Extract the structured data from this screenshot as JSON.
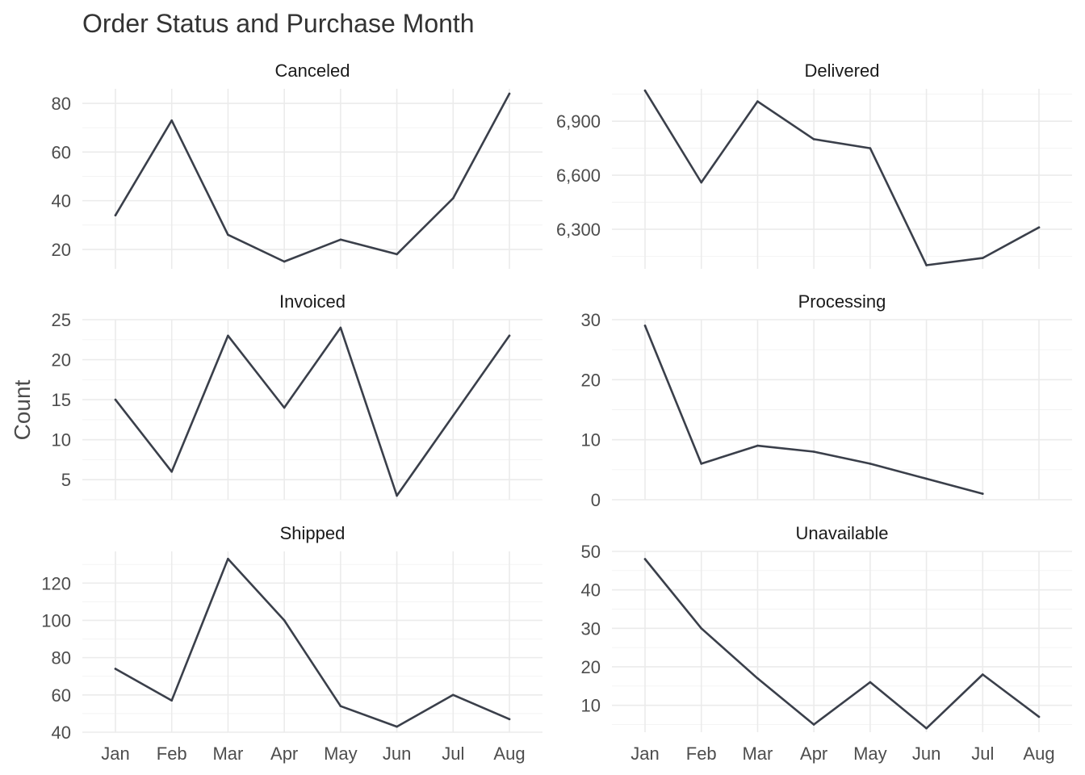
{
  "chart_data": {
    "type": "line",
    "title": "Order Status and Purchase Month",
    "xlabel": "",
    "ylabel": "Count",
    "categories": [
      "Jan",
      "Feb",
      "Mar",
      "Apr",
      "May",
      "Jun",
      "Jul",
      "Aug"
    ],
    "grid": true,
    "layout": "facets 2 columns x 3 rows, free y scales",
    "line_color": "#3a3f4a",
    "panels": [
      {
        "name": "Canceled",
        "values": [
          34,
          73,
          26,
          15,
          24,
          18,
          41,
          84
        ],
        "ylim": [
          12,
          86
        ],
        "y_ticks": [
          20,
          40,
          60,
          80
        ],
        "y_tick_labels": [
          "20",
          "40",
          "60",
          "80"
        ]
      },
      {
        "name": "Delivered",
        "values": [
          7070,
          6560,
          7010,
          6800,
          6750,
          6100,
          6140,
          6310
        ],
        "ylim": [
          6080,
          7080
        ],
        "y_ticks": [
          6300,
          6600,
          6900
        ],
        "y_tick_labels": [
          "6,300",
          "6,600",
          "6,900"
        ]
      },
      {
        "name": "Invoiced",
        "values": [
          15,
          6,
          23,
          14,
          24,
          3,
          13,
          23
        ],
        "ylim": [
          2.5,
          25
        ],
        "y_ticks": [
          5,
          10,
          15,
          20,
          25
        ],
        "y_tick_labels": [
          "5",
          "10",
          "15",
          "20",
          "25"
        ]
      },
      {
        "name": "Processing",
        "values": [
          29,
          6,
          9,
          8,
          6,
          3.5,
          1,
          null
        ],
        "ylim": [
          0,
          30
        ],
        "y_ticks": [
          0,
          10,
          20,
          30
        ],
        "y_tick_labels": [
          "0",
          "10",
          "20",
          "30"
        ]
      },
      {
        "name": "Shipped",
        "values": [
          74,
          57,
          133,
          100,
          54,
          43,
          60,
          47
        ],
        "ylim": [
          40,
          137
        ],
        "y_ticks": [
          40,
          60,
          80,
          100,
          120
        ],
        "y_tick_labels": [
          "40",
          "60",
          "80",
          "100",
          "120"
        ]
      },
      {
        "name": "Unavailable",
        "values": [
          48,
          30,
          17,
          5,
          16,
          4,
          18,
          7
        ],
        "ylim": [
          3,
          50
        ],
        "y_ticks": [
          10,
          20,
          30,
          40,
          50
        ],
        "y_tick_labels": [
          "10",
          "20",
          "30",
          "40",
          "50"
        ]
      }
    ]
  }
}
